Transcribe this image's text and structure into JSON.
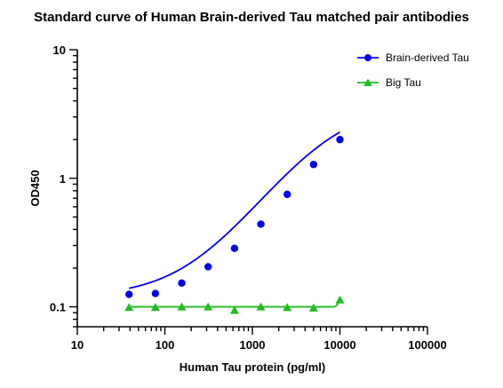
{
  "chart_data": {
    "type": "scatter",
    "title": "Standard curve of Human Brain-derived Tau matched pair antibodies",
    "xlabel": "Human Tau protein (pg/ml)",
    "ylabel": "OD450",
    "xscale": "log",
    "yscale": "log",
    "xlim": [
      10,
      100000
    ],
    "ylim": [
      0.07,
      10
    ],
    "x_ticks": [
      10,
      100,
      1000,
      10000,
      100000
    ],
    "x_tick_labels": [
      "10",
      "100",
      "1000",
      "10000",
      "100000"
    ],
    "y_ticks": [
      0.1,
      1,
      10
    ],
    "y_tick_labels": [
      "0.1",
      "1",
      "10"
    ],
    "grid": false,
    "legend_position": "top-right",
    "series": [
      {
        "name": "Brain-derived Tau",
        "color": "#0000ee",
        "marker": "circle",
        "x": [
          39,
          78,
          156,
          312,
          625,
          1250,
          2500,
          5000,
          10000
        ],
        "y": [
          0.125,
          0.127,
          0.153,
          0.205,
          0.285,
          0.44,
          0.75,
          1.28,
          2.0
        ]
      },
      {
        "name": "Big Tau",
        "color": "#22bb22",
        "marker": "triangle",
        "x": [
          39,
          78,
          156,
          312,
          625,
          1250,
          2500,
          5000,
          10000
        ],
        "y": [
          0.099,
          0.099,
          0.1,
          0.1,
          0.094,
          0.1,
          0.099,
          0.098,
          0.113
        ]
      }
    ]
  }
}
